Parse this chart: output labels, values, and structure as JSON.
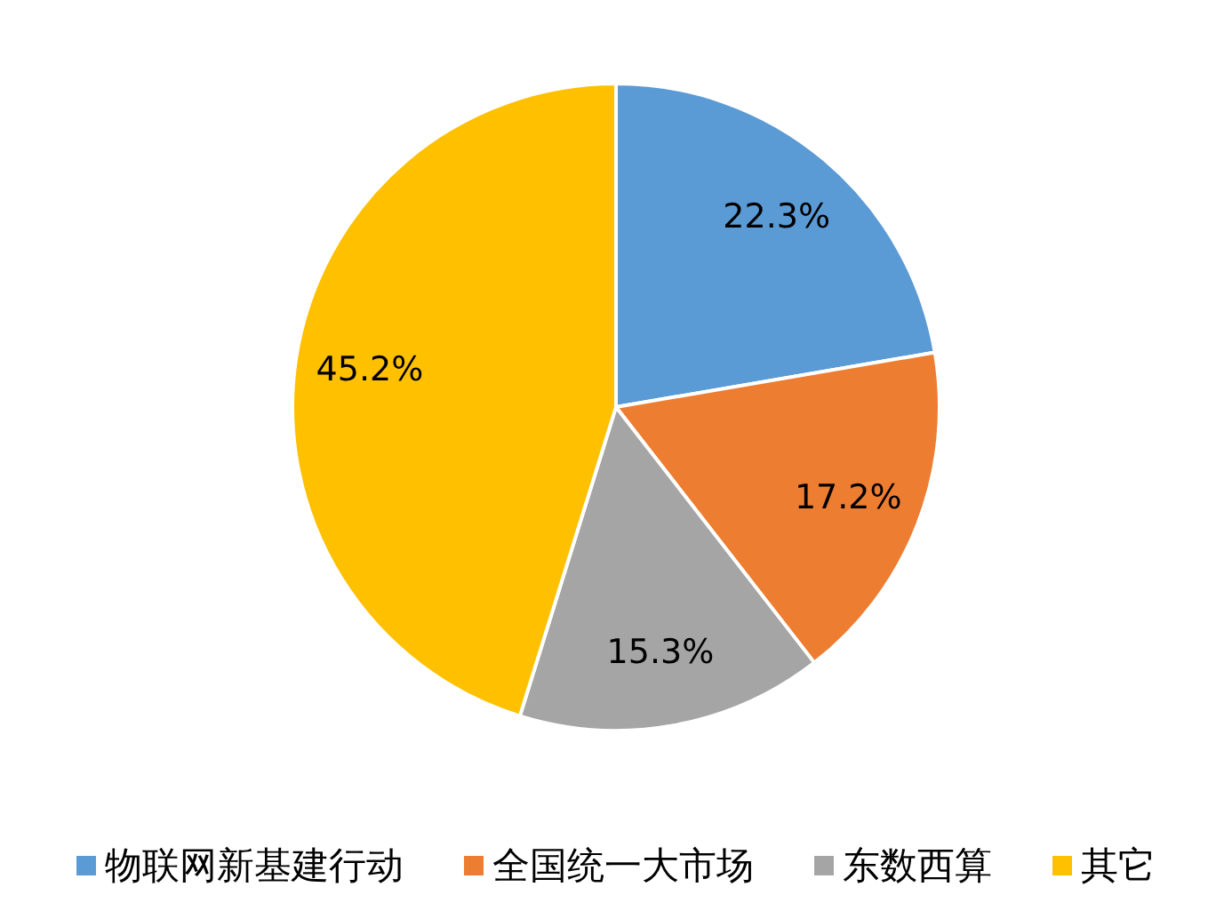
{
  "chart_data": {
    "type": "pie",
    "categories": [
      "物联网新基建行动",
      "全国统一大市场",
      "东数西算",
      "其它"
    ],
    "values": [
      22.3,
      17.2,
      15.3,
      45.2
    ],
    "colors": [
      "#5b9bd5",
      "#ed7d31",
      "#a5a5a5",
      "#ffc000"
    ],
    "value_labels": [
      "22.3%",
      "17.2%",
      "15.3%",
      "45.2%"
    ],
    "legend": "bottom"
  }
}
